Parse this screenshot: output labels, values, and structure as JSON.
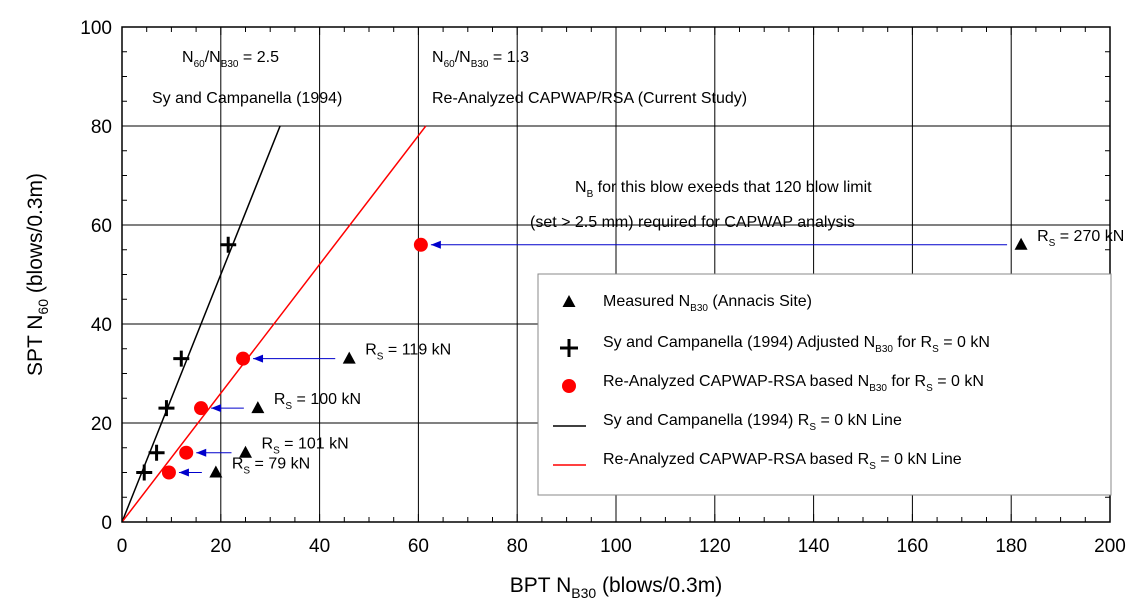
{
  "chart_data": {
    "type": "scatter",
    "xlabel": "BPT N",
    "xlabel_sub": "B30",
    "xlabel_suffix": " (blows/0.3m)",
    "ylabel": "SPT N",
    "ylabel_sub": "60",
    "ylabel_suffix": " (blows/0.3m)",
    "xlim": [
      0,
      200
    ],
    "ylim": [
      0,
      100
    ],
    "xticks": [
      0,
      20,
      40,
      60,
      80,
      100,
      120,
      140,
      160,
      180,
      200
    ],
    "yticks": [
      0,
      20,
      40,
      60,
      80,
      100
    ],
    "grid": true,
    "legend_position": "lower-right",
    "series": [
      {
        "name": "Measured N_B30 (Annacis Site)",
        "marker": "triangle",
        "color": "#000000",
        "points": [
          {
            "x": 19,
            "y": 10,
            "label": "R_S = 79 kN"
          },
          {
            "x": 25,
            "y": 14,
            "label": "R_S = 101 kN"
          },
          {
            "x": 27.5,
            "y": 23,
            "label": "R_S = 100 kN"
          },
          {
            "x": 46,
            "y": 33,
            "label": "R_S = 119 kN"
          },
          {
            "x": 182,
            "y": 56,
            "label": "R_S = 270 kN"
          }
        ]
      },
      {
        "name": "Sy and Campanella (1994) Adjusted N_B30 for R_S = 0 kN",
        "marker": "plus",
        "color": "#000000",
        "points": [
          {
            "x": 4.5,
            "y": 10
          },
          {
            "x": 7,
            "y": 14
          },
          {
            "x": 9,
            "y": 23
          },
          {
            "x": 12,
            "y": 33
          },
          {
            "x": 21.5,
            "y": 56
          }
        ]
      },
      {
        "name": "Re-Analyzed CAPWAP-RSA based N_B30 for R_S = 0 kN",
        "marker": "circle",
        "color": "#ff0000",
        "points": [
          {
            "x": 9.5,
            "y": 10
          },
          {
            "x": 13,
            "y": 14
          },
          {
            "x": 16,
            "y": 23
          },
          {
            "x": 24.5,
            "y": 33
          },
          {
            "x": 60.5,
            "y": 56
          }
        ]
      },
      {
        "name": "Sy and Campanella (1994) R_S = 0 kN Line",
        "marker": "line",
        "color": "#000000",
        "points": [
          {
            "x": 0,
            "y": 0
          },
          {
            "x": 32,
            "y": 80
          }
        ]
      },
      {
        "name": "Re-Analyzed CAPWAP-RSA based R_S = 0 kN Line",
        "marker": "line",
        "color": "#ff0000",
        "points": [
          {
            "x": 0,
            "y": 0
          },
          {
            "x": 61.5,
            "y": 80
          }
        ]
      }
    ]
  },
  "annotations": {
    "sc_ratio": "N60/NB30 = 2.5",
    "sc_source": "Sy and Campanella (1994)",
    "rsa_ratio": "N60/NB30 = 1.3",
    "rsa_source": "Re-Analyzed CAPWAP/RSA (Current Study)",
    "note_line1": "NB for this blow exeeds that 120 blow limit",
    "note_line2": "(set > 2.5 mm) required for CAPWAP analysis"
  },
  "legend": {
    "item1": {
      "pre": "Measured N",
      "sub": "B30",
      "post": " (Annacis Site)"
    },
    "item2": {
      "pre": "Sy and Campanella (1994) Adjusted N",
      "sub": "B30",
      "mid": " for R",
      "sub2": "S",
      "post": " = 0 kN"
    },
    "item3": {
      "pre": "Re-Analyzed CAPWAP-RSA based N",
      "sub": "B30",
      "mid": " for R",
      "sub2": "S",
      "post": " = 0 kN"
    },
    "item4": {
      "pre": "Sy and Campanella (1994) R",
      "sub": "S",
      "post": " = 0 kN Line"
    },
    "item5": {
      "pre": "Re-Analyzed CAPWAP-RSA based R",
      "sub": "S",
      "post": " = 0 kN Line"
    }
  },
  "colors": {
    "arrow": "#0000cc",
    "red": "#ff0000",
    "black": "#000000"
  }
}
